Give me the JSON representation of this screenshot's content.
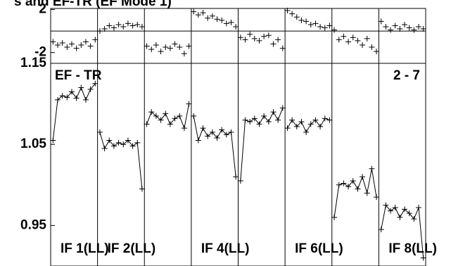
{
  "chart_data": [
    {
      "type": "scatter",
      "title": "s and EF-TR (EF Mode 1)",
      "ylim": [
        -3,
        2.1
      ],
      "yticks": [
        2,
        -2
      ],
      "reference_lines": [
        0
      ],
      "segments": [
        {
          "values": [
            -1.0,
            -1.3,
            -1.1,
            -1.5,
            -1.2,
            -1.6,
            -1.3,
            -1.0,
            -1.4,
            -0.8
          ]
        },
        {
          "values": [
            0.0,
            0.2,
            0.5,
            0.3,
            0.6,
            0.4,
            0.7,
            0.5,
            0.6,
            0.4
          ]
        },
        {
          "values": [
            -1.4,
            -1.7,
            -1.3,
            -1.9,
            -1.5,
            -1.6,
            -1.2,
            -1.5,
            -2.1,
            -1.4
          ]
        },
        {
          "values": [
            1.8,
            1.5,
            1.7,
            1.2,
            1.4,
            1.1,
            1.0,
            0.7,
            0.8,
            0.4
          ]
        },
        {
          "values": [
            -0.6,
            -0.8,
            -0.3,
            -0.7,
            -0.9,
            -0.5,
            -0.4,
            -1.2,
            -0.8,
            -1.6
          ]
        },
        {
          "values": [
            1.9,
            1.6,
            1.3,
            1.0,
            0.9,
            0.6,
            0.7,
            0.4,
            0.3,
            0.5
          ]
        },
        {
          "values": [
            0.1,
            -0.8,
            -0.5,
            -1.0,
            -0.6,
            -0.9,
            -1.3,
            -0.7,
            -1.5,
            -1.9
          ]
        },
        {
          "values": [
            0.9,
            0.4,
            0.1,
            0.5,
            0.2,
            0.6,
            0.3,
            0.1,
            0.4,
            0.2
          ]
        }
      ]
    },
    {
      "type": "line",
      "ylim": [
        0.9,
        1.15
      ],
      "yticks": [
        0.95,
        1.05,
        1.15
      ],
      "annotations": [
        "EF - TR",
        "2 - 7"
      ],
      "labels": [
        {
          "text": "IF 1(LL)",
          "segment": 0
        },
        {
          "text": "IF 2(LL)",
          "segment": 1
        },
        {
          "text": "IF 4(LL)",
          "segment": 3
        },
        {
          "text": "IF 6(LL)",
          "segment": 5
        },
        {
          "text": "IF 8(LL)",
          "segment": 7
        }
      ],
      "segments": [
        {
          "values": [
            1.055,
            1.105,
            1.11,
            1.108,
            1.115,
            1.107,
            1.12,
            1.105,
            1.118,
            1.125
          ]
        },
        {
          "values": [
            1.065,
            1.045,
            1.055,
            1.048,
            1.052,
            1.05,
            1.055,
            1.048,
            1.052,
            0.995
          ]
        },
        {
          "values": [
            1.075,
            1.09,
            1.085,
            1.08,
            1.088,
            1.075,
            1.082,
            1.085,
            1.07,
            1.1
          ]
        },
        {
          "values": [
            1.085,
            1.055,
            1.07,
            1.06,
            1.065,
            1.058,
            1.068,
            1.062,
            1.065,
            1.01
          ]
        },
        {
          "values": [
            1.005,
            1.08,
            1.078,
            1.082,
            1.075,
            1.085,
            1.078,
            1.09,
            1.08,
            1.095
          ]
        },
        {
          "values": [
            1.07,
            1.08,
            1.072,
            1.078,
            1.065,
            1.075,
            1.08,
            1.072,
            1.082,
            1.08
          ]
        },
        {
          "values": [
            0.96,
            1.0,
            1.002,
            0.998,
            1.005,
            0.995,
            1.01,
            0.99,
            1.02,
            0.985
          ]
        },
        {
          "values": [
            0.945,
            0.975,
            0.968,
            0.972,
            0.96,
            0.97,
            0.965,
            0.958,
            0.972,
            0.91
          ]
        }
      ]
    }
  ]
}
